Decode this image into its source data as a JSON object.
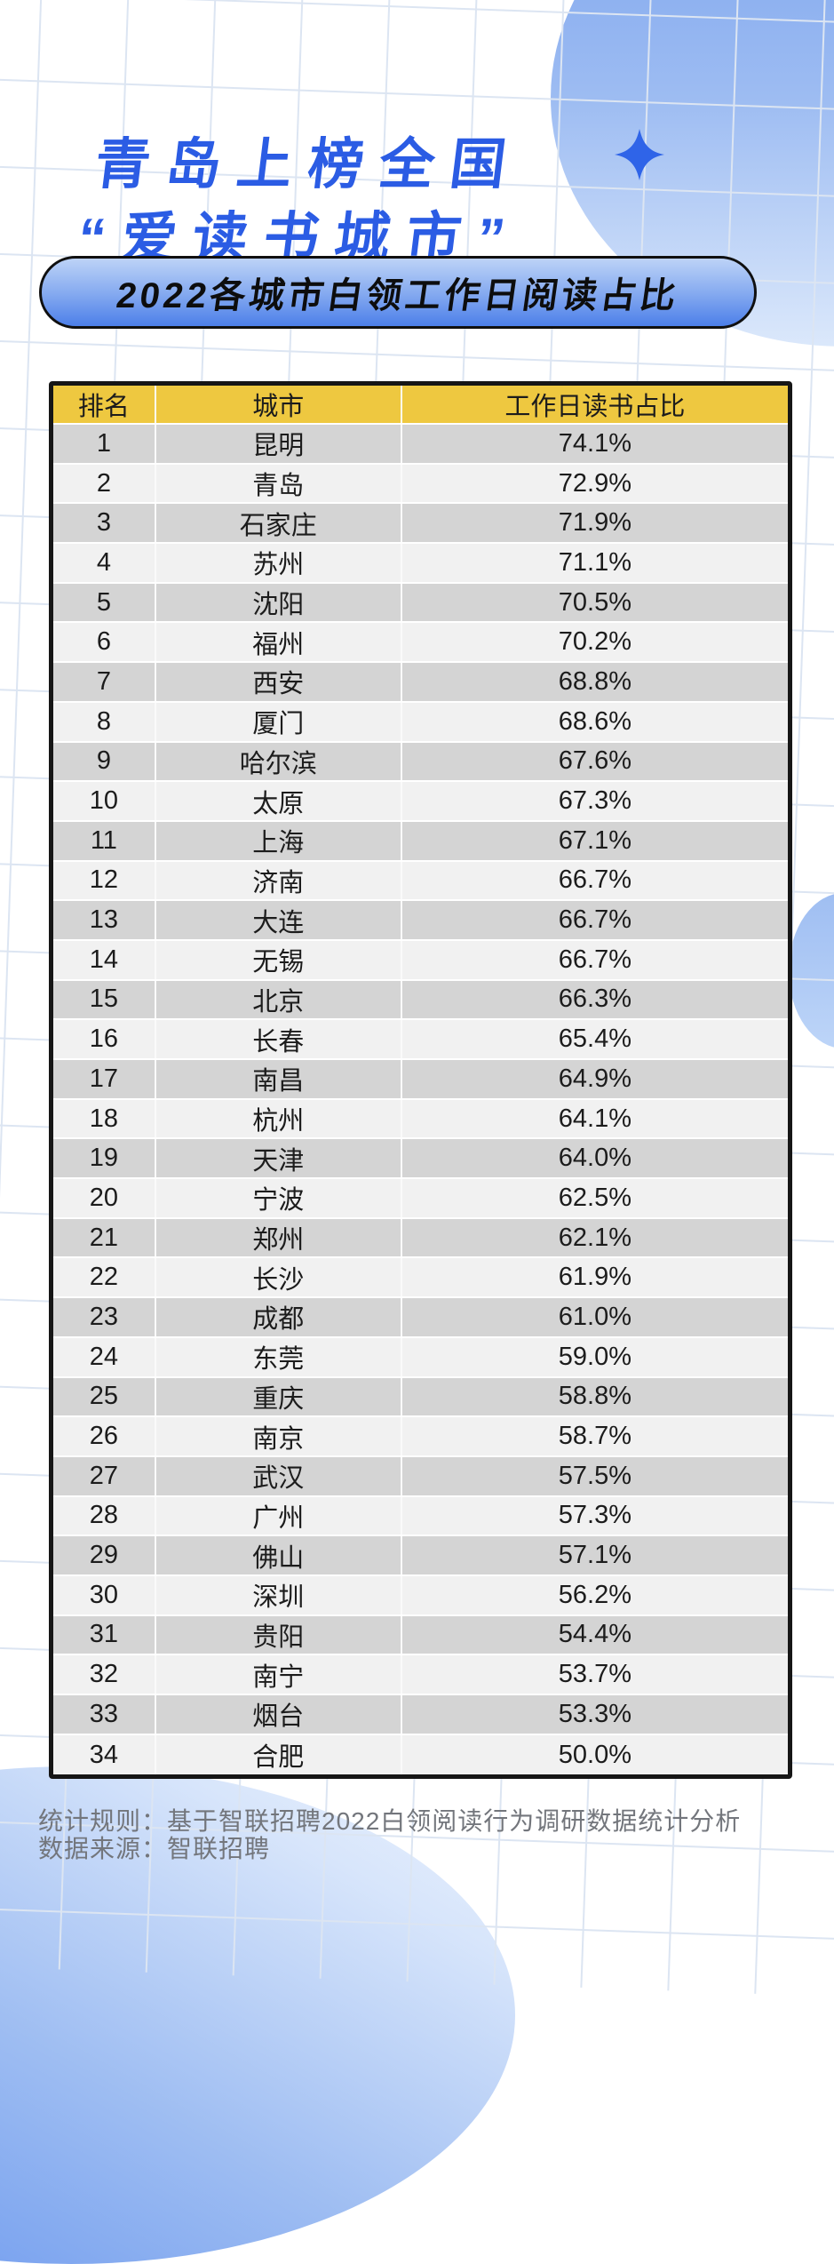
{
  "poster": {
    "title_line1": "青岛上榜全国",
    "title_line2": "“爱读书城市”",
    "subtitle": "2022各城市白领工作日阅读占比",
    "footer": {
      "line1": "统计规则：基于智联招聘2022白领阅读行为调研数据统计分析",
      "line2": "数据来源：智联招聘"
    },
    "icons": {
      "sparkle": "four-point-star-icon"
    },
    "colors": {
      "title_blue": "#2b5ce4",
      "sparkle_blue": "#2f64e8",
      "pill_gradient_top": "#bdd3f7",
      "pill_gradient_bottom": "#4c7fe9",
      "header_yellow": "#eec840",
      "row_dark": "#d4d4d4",
      "row_light": "#f1f1f1",
      "footer_gray": "#73767c"
    }
  },
  "table": {
    "headers": [
      "排名",
      "城市",
      "工作日读书占比"
    ],
    "rows": [
      {
        "rank": "1",
        "city": "昆明",
        "pct": "74.1%"
      },
      {
        "rank": "2",
        "city": "青岛",
        "pct": "72.9%"
      },
      {
        "rank": "3",
        "city": "石家庄",
        "pct": "71.9%"
      },
      {
        "rank": "4",
        "city": "苏州",
        "pct": "71.1%"
      },
      {
        "rank": "5",
        "city": "沈阳",
        "pct": "70.5%"
      },
      {
        "rank": "6",
        "city": "福州",
        "pct": "70.2%"
      },
      {
        "rank": "7",
        "city": "西安",
        "pct": "68.8%"
      },
      {
        "rank": "8",
        "city": "厦门",
        "pct": "68.6%"
      },
      {
        "rank": "9",
        "city": "哈尔滨",
        "pct": "67.6%"
      },
      {
        "rank": "10",
        "city": "太原",
        "pct": "67.3%"
      },
      {
        "rank": "11",
        "city": "上海",
        "pct": "67.1%"
      },
      {
        "rank": "12",
        "city": "济南",
        "pct": "66.7%"
      },
      {
        "rank": "13",
        "city": "大连",
        "pct": "66.7%"
      },
      {
        "rank": "14",
        "city": "无锡",
        "pct": "66.7%"
      },
      {
        "rank": "15",
        "city": "北京",
        "pct": "66.3%"
      },
      {
        "rank": "16",
        "city": "长春",
        "pct": "65.4%"
      },
      {
        "rank": "17",
        "city": "南昌",
        "pct": "64.9%"
      },
      {
        "rank": "18",
        "city": "杭州",
        "pct": "64.1%"
      },
      {
        "rank": "19",
        "city": "天津",
        "pct": "64.0%"
      },
      {
        "rank": "20",
        "city": "宁波",
        "pct": "62.5%"
      },
      {
        "rank": "21",
        "city": "郑州",
        "pct": "62.1%"
      },
      {
        "rank": "22",
        "city": "长沙",
        "pct": "61.9%"
      },
      {
        "rank": "23",
        "city": "成都",
        "pct": "61.0%"
      },
      {
        "rank": "24",
        "city": "东莞",
        "pct": "59.0%"
      },
      {
        "rank": "25",
        "city": "重庆",
        "pct": "58.8%"
      },
      {
        "rank": "26",
        "city": "南京",
        "pct": "58.7%"
      },
      {
        "rank": "27",
        "city": "武汉",
        "pct": "57.5%"
      },
      {
        "rank": "28",
        "city": "广州",
        "pct": "57.3%"
      },
      {
        "rank": "29",
        "city": "佛山",
        "pct": "57.1%"
      },
      {
        "rank": "30",
        "city": "深圳",
        "pct": "56.2%"
      },
      {
        "rank": "31",
        "city": "贵阳",
        "pct": "54.4%"
      },
      {
        "rank": "32",
        "city": "南宁",
        "pct": "53.7%"
      },
      {
        "rank": "33",
        "city": "烟台",
        "pct": "53.3%"
      },
      {
        "rank": "34",
        "city": "合肥",
        "pct": "50.0%"
      }
    ]
  },
  "chart_data": {
    "type": "table",
    "title": "2022各城市白领工作日阅读占比",
    "subtitle": "青岛上榜全国“爱读书城市”",
    "columns": [
      "排名",
      "城市",
      "工作日读书占比"
    ],
    "categories": [
      "昆明",
      "青岛",
      "石家庄",
      "苏州",
      "沈阳",
      "福州",
      "西安",
      "厦门",
      "哈尔滨",
      "太原",
      "上海",
      "济南",
      "大连",
      "无锡",
      "北京",
      "长春",
      "南昌",
      "杭州",
      "天津",
      "宁波",
      "郑州",
      "长沙",
      "成都",
      "东莞",
      "重庆",
      "南京",
      "武汉",
      "广州",
      "佛山",
      "深圳",
      "贵阳",
      "南宁",
      "烟台",
      "合肥"
    ],
    "values": [
      74.1,
      72.9,
      71.9,
      71.1,
      70.5,
      70.2,
      68.8,
      68.6,
      67.6,
      67.3,
      67.1,
      66.7,
      66.7,
      66.7,
      66.3,
      65.4,
      64.9,
      64.1,
      64.0,
      62.5,
      62.1,
      61.9,
      61.0,
      59.0,
      58.8,
      58.7,
      57.5,
      57.3,
      57.1,
      56.2,
      54.4,
      53.7,
      53.3,
      50.0
    ],
    "unit": "%",
    "source": "智联招聘"
  }
}
